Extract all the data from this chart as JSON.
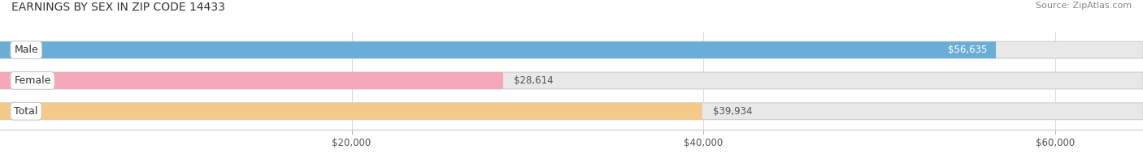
{
  "title": "EARNINGS BY SEX IN ZIP CODE 14433",
  "source": "Source: ZipAtlas.com",
  "categories": [
    "Male",
    "Female",
    "Total"
  ],
  "values": [
    56635,
    28614,
    39934
  ],
  "bar_colors": [
    "#6aaed6",
    "#f4a7b9",
    "#f5c98a"
  ],
  "label_texts": [
    "$56,635",
    "$28,614",
    "$39,934"
  ],
  "tick_labels": [
    "$20,000",
    "$40,000",
    "$60,000"
  ],
  "tick_values": [
    20000,
    40000,
    60000
  ],
  "xmin": 0,
  "xmax": 65000,
  "bar_height": 0.55,
  "title_fontsize": 10,
  "source_fontsize": 8,
  "label_fontsize": 8.5,
  "category_fontsize": 9,
  "bar_bg_color": "#e8e8e8",
  "bar_bg_border_color": "#d0d0d0"
}
